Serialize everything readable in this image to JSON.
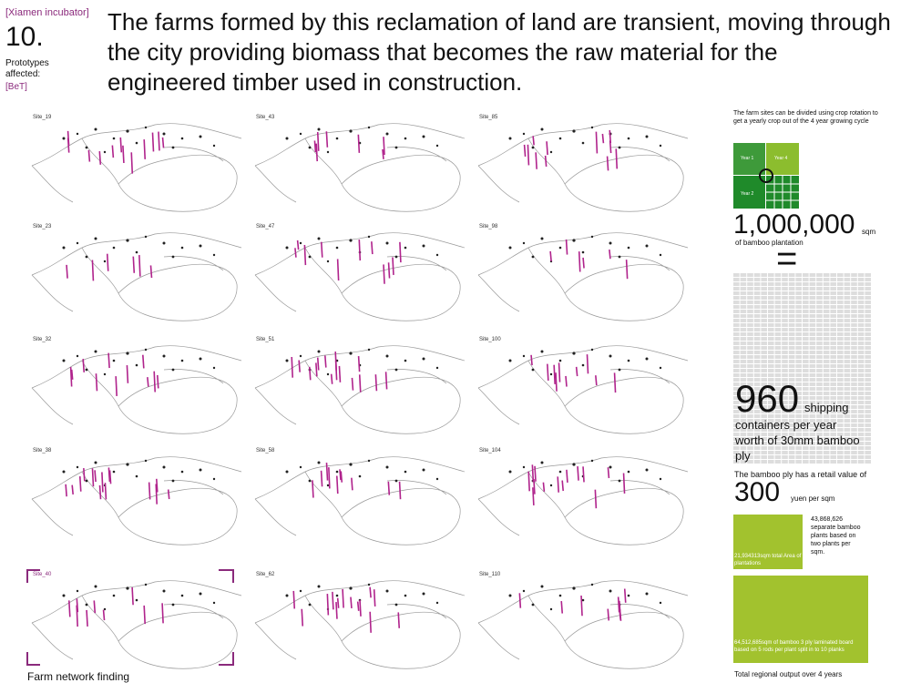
{
  "header": {
    "tag": "[Xiamen incubator]",
    "number": "10.",
    "prototypes_label": "Prototypes affected:",
    "prototypes": "[BeT]",
    "statement": "The farms formed by this reclamation of land are transient, moving through the city providing biomass that becomes the raw material for the engineered timber used in construction."
  },
  "sites": [
    "Site_19",
    "Site_43",
    "Site_85",
    "Site_23",
    "Site_47",
    "Site_98",
    "Site_32",
    "Site_51",
    "Site_100",
    "Site_38",
    "Site_58",
    "Site_104",
    "Site_40",
    "Site_62",
    "Site_110"
  ],
  "caption": "Farm network finding",
  "sidebar": {
    "intro": "The farm sites can be divided using crop rotation to get a yearly crop out of the 4 year growing cycle",
    "years": [
      "Year 1",
      "Year 4",
      "Year 2"
    ],
    "area_value": "1,000,000",
    "area_unit": "sqm",
    "area_text": "of bamboo plantation",
    "equals": "=",
    "containers_value": "960",
    "containers_unit": "shipping",
    "containers_text": "containers per year worth of 30mm bamboo ply",
    "retail_text": "The bamboo ply has a retail value of",
    "price_value": "300",
    "price_unit": "yuen per sqm",
    "plants_text": "43,868,626 separate bamboo plants based on two plants per sqm.",
    "area_total_text": "21,934313sqm total Area of plantations",
    "output_text": "64,512,685sqm of bamboo 3 ply laminated board based on 5 rods per plant split in to 10 planks",
    "footer": "Total regional output over 4 years"
  }
}
